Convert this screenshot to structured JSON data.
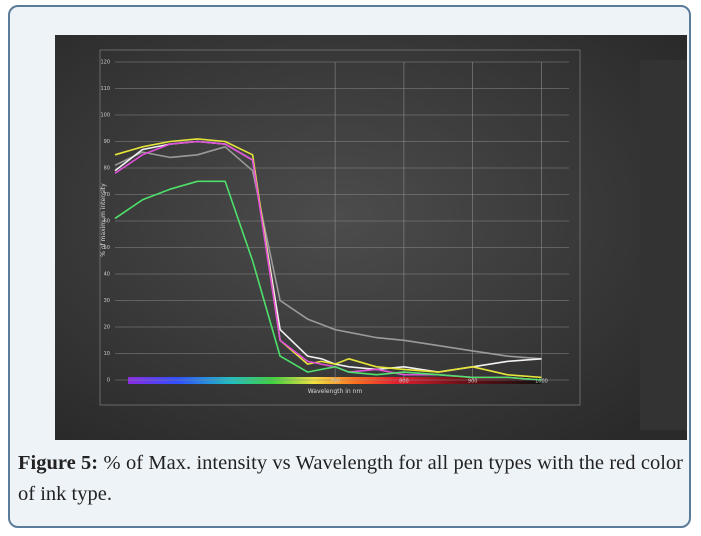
{
  "chart_data": {
    "type": "line",
    "x_label": "Wavelength in nm",
    "y_label": "% of maximum intensity",
    "xlim": [
      380,
      1040
    ],
    "xticks": [
      700,
      800,
      900,
      1000
    ],
    "ylim": [
      0,
      120
    ],
    "yticks": [
      0,
      10,
      20,
      30,
      40,
      50,
      60,
      70,
      80,
      90,
      100,
      110,
      120
    ],
    "grid": true,
    "x": [
      380,
      420,
      460,
      500,
      540,
      580,
      620,
      660,
      680,
      700,
      720,
      760,
      800,
      850,
      900,
      950,
      1000
    ],
    "series": [
      {
        "color": "#9a9a9a",
        "values": [
          81,
          86,
          84,
          85,
          88,
          79,
          30,
          23,
          21,
          19,
          18,
          16,
          15,
          13,
          11,
          9,
          8
        ]
      },
      {
        "color": "#f2f2f2",
        "values": [
          79,
          87,
          89,
          90,
          89,
          83,
          19,
          9,
          8,
          6,
          5,
          4,
          5,
          3,
          5,
          7,
          8
        ]
      },
      {
        "color": "#e4e43a",
        "values": [
          85,
          88,
          90,
          91,
          90,
          85,
          15,
          6,
          7,
          6,
          8,
          5,
          4,
          3,
          5,
          2,
          1
        ]
      },
      {
        "color": "#e050d8",
        "values": [
          78,
          85,
          89,
          90,
          89,
          83,
          15,
          7,
          6,
          5,
          3,
          4,
          2,
          2,
          1,
          1,
          0
        ]
      },
      {
        "color": "#4ee06a",
        "values": [
          61,
          68,
          72,
          75,
          75,
          45,
          9,
          3,
          4,
          5,
          3,
          2,
          3,
          2,
          1,
          1,
          0
        ]
      }
    ]
  },
  "figure": {
    "label": "Figure 5:",
    "caption": "% of Max. intensity vs Wavelength for all pen types with the red color of ink type."
  }
}
